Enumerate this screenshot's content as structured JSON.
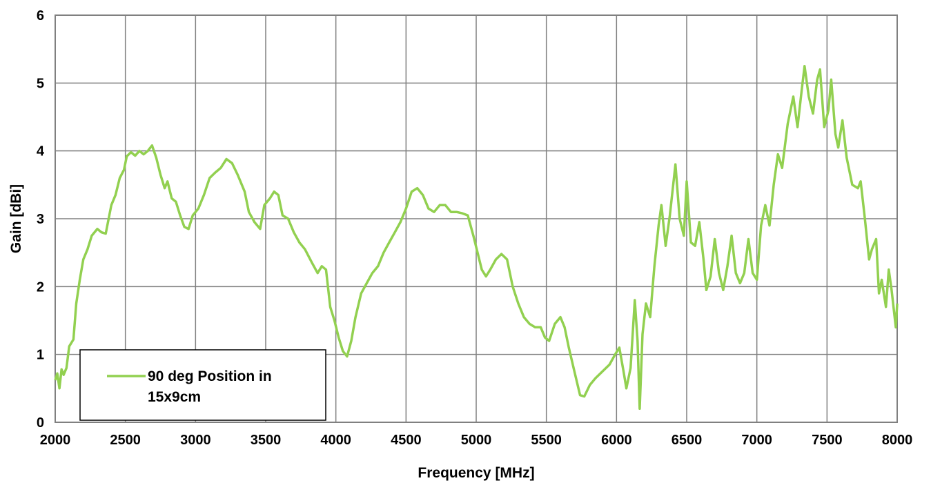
{
  "chart_data": {
    "type": "line",
    "title": "",
    "xlabel": "Frequency [MHz]",
    "ylabel": "Gain [dBi]",
    "xlim": [
      2000,
      8000
    ],
    "ylim": [
      0,
      6
    ],
    "x_ticks": [
      "2000",
      "2500",
      "3000",
      "3500",
      "4000",
      "4500",
      "5000",
      "5500",
      "6000",
      "6500",
      "7000",
      "7500",
      "8000"
    ],
    "y_ticks": [
      "0",
      "1",
      "2",
      "3",
      "4",
      "5",
      "6"
    ],
    "grid": true,
    "legend": {
      "position": "bottom-left",
      "entries": [
        "90 deg Position in",
        "15x9cm"
      ]
    },
    "series": [
      {
        "name": "90 deg Position in 15x9cm",
        "color": "#92d050",
        "points": [
          [
            2000,
            0.62
          ],
          [
            2015,
            0.72
          ],
          [
            2030,
            0.5
          ],
          [
            2045,
            0.78
          ],
          [
            2060,
            0.7
          ],
          [
            2080,
            0.8
          ],
          [
            2100,
            1.12
          ],
          [
            2130,
            1.22
          ],
          [
            2150,
            1.75
          ],
          [
            2175,
            2.1
          ],
          [
            2200,
            2.4
          ],
          [
            2230,
            2.55
          ],
          [
            2260,
            2.75
          ],
          [
            2300,
            2.85
          ],
          [
            2330,
            2.8
          ],
          [
            2360,
            2.78
          ],
          [
            2400,
            3.2
          ],
          [
            2430,
            3.35
          ],
          [
            2460,
            3.6
          ],
          [
            2490,
            3.72
          ],
          [
            2510,
            3.92
          ],
          [
            2540,
            3.98
          ],
          [
            2570,
            3.93
          ],
          [
            2600,
            4.0
          ],
          [
            2630,
            3.95
          ],
          [
            2660,
            4.0
          ],
          [
            2690,
            4.08
          ],
          [
            2720,
            3.9
          ],
          [
            2750,
            3.65
          ],
          [
            2780,
            3.45
          ],
          [
            2800,
            3.55
          ],
          [
            2830,
            3.3
          ],
          [
            2860,
            3.25
          ],
          [
            2890,
            3.05
          ],
          [
            2920,
            2.88
          ],
          [
            2950,
            2.85
          ],
          [
            2980,
            3.05
          ],
          [
            3020,
            3.15
          ],
          [
            3060,
            3.35
          ],
          [
            3100,
            3.6
          ],
          [
            3140,
            3.68
          ],
          [
            3180,
            3.75
          ],
          [
            3220,
            3.88
          ],
          [
            3260,
            3.82
          ],
          [
            3300,
            3.65
          ],
          [
            3350,
            3.4
          ],
          [
            3380,
            3.1
          ],
          [
            3420,
            2.95
          ],
          [
            3460,
            2.85
          ],
          [
            3490,
            3.2
          ],
          [
            3530,
            3.3
          ],
          [
            3560,
            3.4
          ],
          [
            3590,
            3.35
          ],
          [
            3620,
            3.05
          ],
          [
            3660,
            3.0
          ],
          [
            3700,
            2.8
          ],
          [
            3740,
            2.65
          ],
          [
            3780,
            2.55
          ],
          [
            3830,
            2.35
          ],
          [
            3870,
            2.2
          ],
          [
            3900,
            2.3
          ],
          [
            3930,
            2.25
          ],
          [
            3960,
            1.7
          ],
          [
            3990,
            1.5
          ],
          [
            4020,
            1.25
          ],
          [
            4050,
            1.05
          ],
          [
            4080,
            0.97
          ],
          [
            4110,
            1.2
          ],
          [
            4140,
            1.55
          ],
          [
            4180,
            1.9
          ],
          [
            4220,
            2.05
          ],
          [
            4260,
            2.2
          ],
          [
            4300,
            2.3
          ],
          [
            4340,
            2.5
          ],
          [
            4380,
            2.65
          ],
          [
            4420,
            2.8
          ],
          [
            4460,
            2.95
          ],
          [
            4500,
            3.15
          ],
          [
            4540,
            3.4
          ],
          [
            4580,
            3.45
          ],
          [
            4620,
            3.35
          ],
          [
            4660,
            3.15
          ],
          [
            4700,
            3.1
          ],
          [
            4740,
            3.2
          ],
          [
            4780,
            3.2
          ],
          [
            4820,
            3.1
          ],
          [
            4860,
            3.1
          ],
          [
            4900,
            3.08
          ],
          [
            4940,
            3.05
          ],
          [
            4980,
            2.75
          ],
          [
            5010,
            2.5
          ],
          [
            5040,
            2.25
          ],
          [
            5070,
            2.15
          ],
          [
            5100,
            2.25
          ],
          [
            5140,
            2.4
          ],
          [
            5180,
            2.48
          ],
          [
            5220,
            2.4
          ],
          [
            5260,
            2.0
          ],
          [
            5300,
            1.75
          ],
          [
            5340,
            1.55
          ],
          [
            5380,
            1.45
          ],
          [
            5420,
            1.4
          ],
          [
            5460,
            1.4
          ],
          [
            5490,
            1.25
          ],
          [
            5520,
            1.2
          ],
          [
            5560,
            1.45
          ],
          [
            5600,
            1.55
          ],
          [
            5630,
            1.4
          ],
          [
            5660,
            1.1
          ],
          [
            5700,
            0.75
          ],
          [
            5740,
            0.4
          ],
          [
            5770,
            0.38
          ],
          [
            5810,
            0.55
          ],
          [
            5850,
            0.65
          ],
          [
            5900,
            0.75
          ],
          [
            5950,
            0.85
          ],
          [
            5990,
            1.0
          ],
          [
            6020,
            1.1
          ],
          [
            6050,
            0.75
          ],
          [
            6070,
            0.5
          ],
          [
            6100,
            0.8
          ],
          [
            6130,
            1.8
          ],
          [
            6150,
            1.2
          ],
          [
            6165,
            0.2
          ],
          [
            6185,
            1.3
          ],
          [
            6210,
            1.75
          ],
          [
            6240,
            1.55
          ],
          [
            6270,
            2.3
          ],
          [
            6300,
            2.9
          ],
          [
            6320,
            3.2
          ],
          [
            6350,
            2.6
          ],
          [
            6380,
            3.05
          ],
          [
            6420,
            3.8
          ],
          [
            6450,
            3.0
          ],
          [
            6480,
            2.75
          ],
          [
            6500,
            3.55
          ],
          [
            6530,
            2.65
          ],
          [
            6560,
            2.6
          ],
          [
            6590,
            2.95
          ],
          [
            6620,
            2.4
          ],
          [
            6640,
            1.95
          ],
          [
            6670,
            2.15
          ],
          [
            6700,
            2.7
          ],
          [
            6730,
            2.2
          ],
          [
            6760,
            1.95
          ],
          [
            6790,
            2.3
          ],
          [
            6820,
            2.75
          ],
          [
            6850,
            2.2
          ],
          [
            6880,
            2.05
          ],
          [
            6910,
            2.2
          ],
          [
            6940,
            2.7
          ],
          [
            6970,
            2.2
          ],
          [
            7000,
            2.1
          ],
          [
            7030,
            2.9
          ],
          [
            7060,
            3.2
          ],
          [
            7090,
            2.9
          ],
          [
            7120,
            3.5
          ],
          [
            7150,
            3.95
          ],
          [
            7180,
            3.75
          ],
          [
            7220,
            4.4
          ],
          [
            7260,
            4.8
          ],
          [
            7290,
            4.35
          ],
          [
            7320,
            4.9
          ],
          [
            7340,
            5.25
          ],
          [
            7370,
            4.8
          ],
          [
            7400,
            4.55
          ],
          [
            7430,
            5.05
          ],
          [
            7450,
            5.2
          ],
          [
            7480,
            4.35
          ],
          [
            7510,
            4.6
          ],
          [
            7530,
            5.05
          ],
          [
            7560,
            4.25
          ],
          [
            7580,
            4.05
          ],
          [
            7610,
            4.45
          ],
          [
            7640,
            3.9
          ],
          [
            7680,
            3.5
          ],
          [
            7720,
            3.45
          ],
          [
            7740,
            3.55
          ],
          [
            7770,
            3.0
          ],
          [
            7800,
            2.4
          ],
          [
            7820,
            2.55
          ],
          [
            7850,
            2.7
          ],
          [
            7870,
            1.9
          ],
          [
            7890,
            2.1
          ],
          [
            7920,
            1.7
          ],
          [
            7940,
            2.25
          ],
          [
            7960,
            1.95
          ],
          [
            7990,
            1.4
          ],
          [
            8000,
            1.75
          ]
        ]
      }
    ]
  }
}
